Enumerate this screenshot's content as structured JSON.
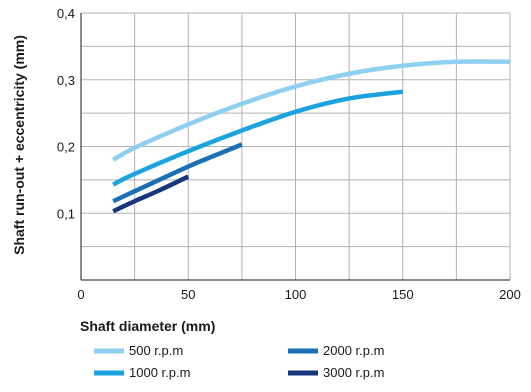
{
  "chart_data": {
    "type": "line",
    "title": "",
    "xlabel": "Shaft diameter  (mm)",
    "ylabel": "Shaft run-out + eccentricity  (mm)",
    "xlim": [
      0,
      200
    ],
    "ylim": [
      0,
      0.4
    ],
    "x_ticks": [
      0,
      50,
      100,
      150,
      200
    ],
    "x_tick_labels": [
      "0",
      "50",
      "100",
      "150",
      "200"
    ],
    "y_ticks": [
      0.1,
      0.2,
      0.3,
      0.4
    ],
    "y_tick_labels": [
      "0,1",
      "0,2",
      "0,3",
      "0,4"
    ],
    "grid": true,
    "grid_x_step": 25,
    "grid_y_step": 0.05,
    "legend_position": "bottom",
    "series": [
      {
        "name": "500 r.p.m",
        "color": "#8fd0f0",
        "x": [
          15,
          25,
          50,
          75,
          100,
          125,
          150,
          175,
          200
        ],
        "y": [
          0.18,
          0.198,
          0.233,
          0.264,
          0.29,
          0.309,
          0.321,
          0.327,
          0.327
        ]
      },
      {
        "name": "1000 r.p.m",
        "color": "#1aa3df",
        "x": [
          15,
          25,
          50,
          75,
          100,
          125,
          150
        ],
        "y": [
          0.143,
          0.159,
          0.193,
          0.224,
          0.252,
          0.272,
          0.282
        ]
      },
      {
        "name": "2000 r.p.m",
        "color": "#1b6fb5",
        "x": [
          15,
          25,
          50,
          62,
          75
        ],
        "y": [
          0.118,
          0.133,
          0.17,
          0.186,
          0.203
        ]
      },
      {
        "name": "3000 r.p.m",
        "color": "#16357a",
        "x": [
          15,
          25,
          37,
          50
        ],
        "y": [
          0.103,
          0.118,
          0.135,
          0.155
        ]
      }
    ]
  }
}
